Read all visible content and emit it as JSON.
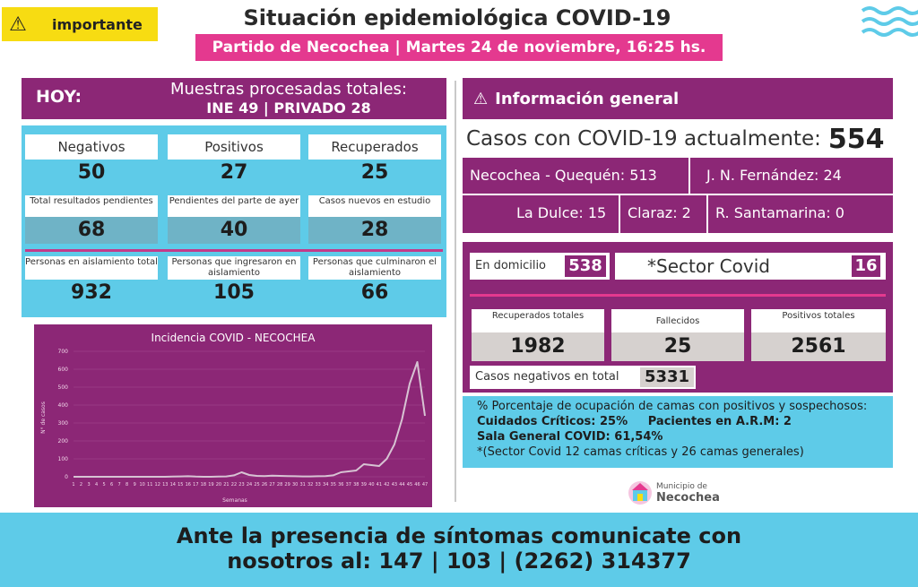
{
  "header": {
    "badge_label": "importante",
    "badge_icon": "warning-icon",
    "title": "Situación epidemiológica COVID-19",
    "subtitle": "Partido de Necochea |  Martes 24 de noviembre, 16:25 hs."
  },
  "hoy": {
    "label": "HOY:",
    "muestras_label": "Muestras procesadas totales:",
    "muestras_value": "INE 49 | PRIVADO 28"
  },
  "stats": {
    "row1": [
      {
        "label": "Negativos",
        "value": "50"
      },
      {
        "label": "Positivos",
        "value": "27"
      },
      {
        "label": "Recuperados",
        "value": "25"
      }
    ],
    "row2": [
      {
        "label": "Total resultados pendientes",
        "value": "68"
      },
      {
        "label": "Pendientes del parte de ayer",
        "value": "40"
      },
      {
        "label": "Casos nuevos en estudio",
        "value": "28"
      }
    ],
    "row3": [
      {
        "label": "Personas en aislamiento total",
        "value": "932"
      },
      {
        "label": "Personas que ingresaron en aislamiento",
        "value": "105"
      },
      {
        "label": "Personas que culminaron el aislamiento",
        "value": "66"
      }
    ]
  },
  "info": {
    "title": "Información general",
    "icon": "warning-icon",
    "casos_label": "Casos con COVID-19 actualmente:",
    "casos_value": "554",
    "localidades": {
      "necochea": "Necochea - Quequén: 513",
      "jnf": "J. N. Fernández: 24",
      "ladulce": "La Dulce: 15",
      "claraz": "Claraz: 2",
      "santamarina": "R. Santamarina: 0"
    },
    "domicilio_label": "En domicilio",
    "domicilio_value": "538",
    "sector_label": "*Sector Covid",
    "sector_value": "16",
    "totales": [
      {
        "label": "Recuperados totales",
        "value": "1982"
      },
      {
        "label": "Fallecidos",
        "value": "25"
      },
      {
        "label": "Positivos totales",
        "value": "2561"
      }
    ],
    "negativos_label": "Casos negativos en total",
    "negativos_value": "5331"
  },
  "beds": {
    "line1": "% Porcentaje de ocupación de camas con positivos y sospechosos:",
    "line2": "Cuidados Críticos: 25%     Pacientes en A.R.M: 2",
    "line3": "Sala General COVID: 61,54%",
    "line4": "*(Sector Covid 12 camas críticas y 26 camas generales)"
  },
  "logo": {
    "line1": "Municipio de",
    "line2": "Necochea"
  },
  "footer": {
    "line1": "Ante la presencia de síntomas comunicate con",
    "line2": "nosotros al: 147 | 103 | (2262) 314377"
  },
  "colors": {
    "purple": "#8c2776",
    "cyan": "#5ecbe8",
    "pink": "#e4398f",
    "yellow": "#f7dc12"
  },
  "chart_data": {
    "type": "line",
    "title": "Incidencia COVID - NECOCHEA",
    "xlabel": "Semanas",
    "ylabel": "N° de casos",
    "ylim": [
      0,
      700
    ],
    "yticks": [
      0,
      100,
      200,
      300,
      400,
      500,
      600,
      700
    ],
    "x": [
      1,
      2,
      3,
      4,
      5,
      6,
      7,
      8,
      9,
      10,
      11,
      12,
      13,
      14,
      15,
      16,
      17,
      18,
      19,
      20,
      21,
      22,
      23,
      24,
      25,
      26,
      27,
      28,
      29,
      30,
      31,
      32,
      33,
      34,
      35,
      36,
      37,
      38,
      39,
      40,
      41,
      42,
      43,
      44,
      45,
      46,
      47
    ],
    "values": [
      0,
      0,
      0,
      0,
      0,
      0,
      0,
      0,
      0,
      0,
      0,
      0,
      0,
      1,
      2,
      3,
      1,
      0,
      0,
      1,
      2,
      8,
      25,
      10,
      5,
      4,
      6,
      5,
      4,
      3,
      2,
      2,
      3,
      4,
      8,
      25,
      30,
      35,
      70,
      65,
      60,
      100,
      180,
      320,
      520,
      640,
      340
    ]
  }
}
